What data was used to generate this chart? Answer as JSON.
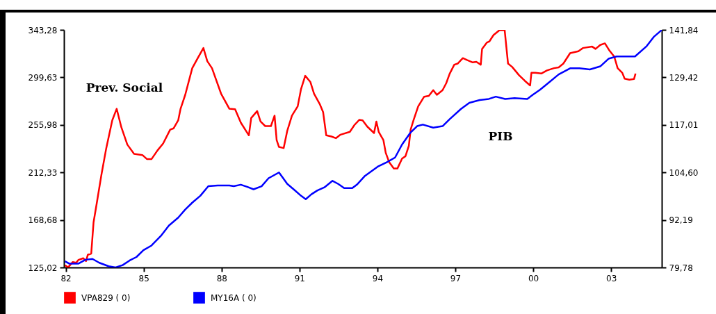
{
  "chart_data": {
    "type": "line",
    "xlim": [
      1981.93,
      2004.95
    ],
    "xticks": [
      {
        "value": 1982,
        "label": "82"
      },
      {
        "value": 1985,
        "label": "85"
      },
      {
        "value": 1988,
        "label": "88"
      },
      {
        "value": 1991,
        "label": "91"
      },
      {
        "value": 1994,
        "label": "94"
      },
      {
        "value": 1997,
        "label": "97"
      },
      {
        "value": 2000,
        "label": "00"
      },
      {
        "value": 2003,
        "label": "03"
      }
    ],
    "ylim": [
      125.02,
      343.28
    ],
    "yticks": [
      {
        "value": 125.02,
        "label": "125,02"
      },
      {
        "value": 168.68,
        "label": "168,68"
      },
      {
        "value": 212.33,
        "label": "212,33"
      },
      {
        "value": 255.98,
        "label": "255,98"
      },
      {
        "value": 299.63,
        "label": "299,63"
      },
      {
        "value": 343.28,
        "label": "343,28"
      }
    ],
    "y2lim": [
      79.78,
      141.84
    ],
    "y2ticks": [
      {
        "value": 79.78,
        "label": "79,78"
      },
      {
        "value": 92.19,
        "label": "92,19"
      },
      {
        "value": 104.6,
        "label": "104,60"
      },
      {
        "value": 117.01,
        "label": "117,01"
      },
      {
        "value": 129.42,
        "label": "129,42"
      },
      {
        "value": 141.84,
        "label": "141,84"
      }
    ],
    "legend": "bottom",
    "annotations": [
      "Prev. Social",
      "PIB"
    ],
    "series": [
      {
        "name": "VPA829 ( 0)",
        "color": "#ff0000",
        "axis": "y",
        "x": [
          1981.97,
          1982.09,
          1982.27,
          1982.4,
          1982.49,
          1982.67,
          1982.78,
          1982.85,
          1982.98,
          1983.07,
          1983.19,
          1983.38,
          1983.56,
          1983.79,
          1983.96,
          1984.14,
          1984.37,
          1984.63,
          1984.95,
          1985.13,
          1985.3,
          1985.53,
          1985.75,
          1986.02,
          1986.15,
          1986.33,
          1986.42,
          1986.6,
          1986.87,
          1987.09,
          1987.3,
          1987.45,
          1987.63,
          1987.98,
          1988.3,
          1988.52,
          1988.74,
          1989.05,
          1989.14,
          1989.37,
          1989.5,
          1989.68,
          1989.9,
          1990.04,
          1990.12,
          1990.21,
          1990.39,
          1990.53,
          1990.71,
          1990.93,
          1991.06,
          1991.22,
          1991.42,
          1991.56,
          1991.78,
          1991.91,
          1992.03,
          1992.23,
          1992.4,
          1992.58,
          1992.94,
          1993.12,
          1993.3,
          1993.43,
          1993.61,
          1993.87,
          1993.96,
          1994.05,
          1994.23,
          1994.32,
          1994.45,
          1994.63,
          1994.77,
          1994.95,
          1995.08,
          1995.21,
          1995.28,
          1995.39,
          1995.57,
          1995.8,
          1995.98,
          1996.15,
          1996.29,
          1996.51,
          1996.65,
          1996.78,
          1996.96,
          1997.09,
          1997.29,
          1997.45,
          1997.67,
          1997.81,
          1997.98,
          1998.03,
          1998.21,
          1998.31,
          1998.47,
          1998.7,
          1998.9,
          1999.03,
          1999.19,
          1999.45,
          1999.68,
          1999.88,
          1999.93,
          2000.08,
          2000.31,
          2000.53,
          2000.8,
          2000.98,
          2001.16,
          2001.42,
          2001.74,
          2001.91,
          2002.27,
          2002.4,
          2002.58,
          2002.76,
          2002.94,
          2003.12,
          2003.25,
          2003.43,
          2003.52,
          2003.7,
          2003.88,
          2003.94
        ],
        "values": [
          127.1,
          125.1,
          130.0,
          129.3,
          132.0,
          133.5,
          130.8,
          136.7,
          137.8,
          166.5,
          183.6,
          211.2,
          234.7,
          260.2,
          270.8,
          253.8,
          237.9,
          229.3,
          228.3,
          224.5,
          224.5,
          232.5,
          238.9,
          251.6,
          252.8,
          260.2,
          270.8,
          283.6,
          308.1,
          317.7,
          326.6,
          314.5,
          308.1,
          284.7,
          270.8,
          270.4,
          258.1,
          246.4,
          262.3,
          268.7,
          259.1,
          254.9,
          254.9,
          264.5,
          242.1,
          235.7,
          234.7,
          250.7,
          264.5,
          273.0,
          289.0,
          301.1,
          295.4,
          284.7,
          275.1,
          267.6,
          246.4,
          245.3,
          243.8,
          247.0,
          249.6,
          256.0,
          260.6,
          260.2,
          254.4,
          248.5,
          259.1,
          249.6,
          242.1,
          230.4,
          221.9,
          215.9,
          215.9,
          225.1,
          227.2,
          236.8,
          251.7,
          260.2,
          273.0,
          281.9,
          282.6,
          287.9,
          283.6,
          287.9,
          294.3,
          302.8,
          311.3,
          312.3,
          317.3,
          315.6,
          313.4,
          313.9,
          311.3,
          325.8,
          331.5,
          332.6,
          338.5,
          343.0,
          343.1,
          312.3,
          309.2,
          301.7,
          296.4,
          292.2,
          303.8,
          303.8,
          303.2,
          306.0,
          308.1,
          308.8,
          312.3,
          321.9,
          323.6,
          326.6,
          327.9,
          325.8,
          329.4,
          330.9,
          324.1,
          318.7,
          308.1,
          303.8,
          298.5,
          297.5,
          298.1,
          303.2
        ]
      },
      {
        "name": "MY16A ( 0)",
        "color": "#0000ff",
        "axis": "y2",
        "x": [
          1981.97,
          1982.13,
          1982.49,
          1982.76,
          1983.03,
          1983.29,
          1983.65,
          1983.92,
          1984.19,
          1984.46,
          1984.72,
          1984.99,
          1985.3,
          1985.66,
          1985.97,
          1986.33,
          1986.6,
          1986.87,
          1987.18,
          1987.49,
          1987.85,
          1988.3,
          1988.47,
          1988.74,
          1989.0,
          1989.23,
          1989.54,
          1989.81,
          1990.21,
          1990.53,
          1990.79,
          1991.06,
          1991.24,
          1991.46,
          1991.69,
          1991.96,
          1992.27,
          1992.49,
          1992.72,
          1993.03,
          1993.21,
          1993.52,
          1994.01,
          1994.37,
          1994.68,
          1994.95,
          1995.26,
          1995.53,
          1995.75,
          1996.15,
          1996.51,
          1996.78,
          1997.22,
          1997.54,
          1997.94,
          1998.29,
          1998.56,
          1998.92,
          1999.28,
          1999.77,
          1999.99,
          2000.26,
          2000.62,
          2000.98,
          2001.42,
          2001.78,
          2002.18,
          2002.58,
          2002.9,
          2003.21,
          2003.92,
          2004.37,
          2004.64,
          2004.95
        ],
        "values": [
          81.4,
          80.8,
          80.8,
          81.8,
          82.0,
          81.0,
          80.1,
          79.8,
          80.4,
          81.6,
          82.5,
          84.3,
          85.5,
          88.0,
          90.7,
          92.8,
          94.9,
          96.7,
          98.5,
          101.0,
          101.2,
          101.2,
          101.0,
          101.4,
          100.8,
          100.2,
          101.0,
          103.1,
          104.6,
          101.6,
          100.1,
          98.5,
          97.6,
          98.9,
          99.9,
          100.7,
          102.4,
          101.6,
          100.5,
          100.5,
          101.4,
          103.7,
          106.1,
          107.3,
          108.5,
          111.9,
          114.9,
          116.7,
          117.1,
          116.3,
          116.7,
          118.5,
          121.2,
          122.8,
          123.5,
          123.8,
          124.4,
          123.8,
          124.0,
          123.8,
          124.9,
          126.2,
          128.2,
          130.2,
          131.8,
          131.8,
          131.5,
          132.3,
          134.3,
          134.9,
          134.9,
          137.6,
          140.0,
          141.8
        ]
      }
    ]
  }
}
